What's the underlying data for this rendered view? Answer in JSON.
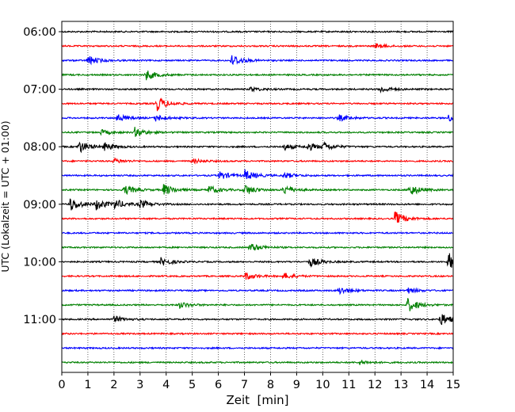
{
  "chart_data": {
    "type": "line",
    "xlabel": "Zeit  [min]",
    "ylabel": "UTC (Lokalzeit = UTC + 01:00)",
    "xlim": [
      0,
      15
    ],
    "x_ticks": [
      0,
      1,
      2,
      3,
      4,
      5,
      6,
      7,
      8,
      9,
      10,
      11,
      12,
      13,
      14,
      15
    ],
    "x_tick_labels": [
      "0",
      "1",
      "2",
      "3",
      "4",
      "5",
      "6",
      "7",
      "8",
      "9",
      "10",
      "11",
      "12",
      "13",
      "14",
      "15"
    ],
    "y_tick_labels": [
      "06:00",
      "07:00",
      "08:00",
      "09:00",
      "10:00",
      "11:00"
    ],
    "grid": {
      "x": "dotted",
      "y": false
    },
    "trace_colors": [
      "#000000",
      "#ff0000",
      "#0000ff",
      "#008000"
    ],
    "traces": [
      {
        "start": "06:00",
        "color": "#000000",
        "events": []
      },
      {
        "start": "06:15",
        "color": "#ff0000",
        "events": [
          {
            "t": 12.0,
            "amp": 3
          }
        ]
      },
      {
        "start": "06:30",
        "color": "#0000ff",
        "events": [
          {
            "t": 1.0,
            "amp": 6
          },
          {
            "t": 6.5,
            "amp": 8
          }
        ]
      },
      {
        "start": "06:45",
        "color": "#008000",
        "events": [
          {
            "t": 3.2,
            "amp": 7
          }
        ]
      },
      {
        "start": "07:00",
        "color": "#000000",
        "events": [
          {
            "t": 7.2,
            "amp": 3
          },
          {
            "t": 12.2,
            "amp": 4
          }
        ]
      },
      {
        "start": "07:15",
        "color": "#ff0000",
        "events": [
          {
            "t": 3.65,
            "amp": 9
          }
        ]
      },
      {
        "start": "07:30",
        "color": "#0000ff",
        "events": [
          {
            "t": 2.1,
            "amp": 5
          },
          {
            "t": 3.6,
            "amp": 4
          },
          {
            "t": 10.6,
            "amp": 4
          },
          {
            "t": 14.8,
            "amp": 4
          }
        ]
      },
      {
        "start": "07:45",
        "color": "#008000",
        "events": [
          {
            "t": 1.5,
            "amp": 3
          },
          {
            "t": 2.8,
            "amp": 6
          }
        ]
      },
      {
        "start": "08:00",
        "color": "#000000",
        "events": [
          {
            "t": 0.65,
            "amp": 8
          },
          {
            "t": 1.6,
            "amp": 5
          },
          {
            "t": 8.5,
            "amp": 4
          },
          {
            "t": 9.4,
            "amp": 5
          },
          {
            "t": 10.0,
            "amp": 5
          }
        ]
      },
      {
        "start": "08:15",
        "color": "#ff0000",
        "events": [
          {
            "t": 2.0,
            "amp": 3
          },
          {
            "t": 5.0,
            "amp": 3
          }
        ]
      },
      {
        "start": "08:30",
        "color": "#0000ff",
        "events": [
          {
            "t": 6.0,
            "amp": 6
          },
          {
            "t": 7.0,
            "amp": 7
          },
          {
            "t": 8.5,
            "amp": 4
          }
        ]
      },
      {
        "start": "08:45",
        "color": "#008000",
        "events": [
          {
            "t": 2.4,
            "amp": 6
          },
          {
            "t": 3.9,
            "amp": 7
          },
          {
            "t": 5.6,
            "amp": 6
          },
          {
            "t": 7.0,
            "amp": 7
          },
          {
            "t": 8.5,
            "amp": 6
          },
          {
            "t": 13.3,
            "amp": 8
          }
        ]
      },
      {
        "start": "09:00",
        "color": "#000000",
        "events": [
          {
            "t": 0.3,
            "amp": 9
          },
          {
            "t": 1.3,
            "amp": 7
          },
          {
            "t": 2.0,
            "amp": 6
          },
          {
            "t": 3.0,
            "amp": 5
          }
        ]
      },
      {
        "start": "09:15",
        "color": "#ff0000",
        "events": [
          {
            "t": 12.75,
            "amp": 9
          }
        ]
      },
      {
        "start": "09:30",
        "color": "#0000ff",
        "events": []
      },
      {
        "start": "09:45",
        "color": "#008000",
        "events": [
          {
            "t": 7.2,
            "amp": 6
          }
        ]
      },
      {
        "start": "10:00",
        "color": "#000000",
        "events": [
          {
            "t": 3.8,
            "amp": 5
          },
          {
            "t": 9.5,
            "amp": 6
          },
          {
            "t": 14.8,
            "amp": 12
          }
        ]
      },
      {
        "start": "10:15",
        "color": "#ff0000",
        "events": [
          {
            "t": 7.0,
            "amp": 5
          },
          {
            "t": 8.5,
            "amp": 4
          }
        ]
      },
      {
        "start": "10:30",
        "color": "#0000ff",
        "events": [
          {
            "t": 10.6,
            "amp": 5
          },
          {
            "t": 13.2,
            "amp": 4
          }
        ]
      },
      {
        "start": "10:45",
        "color": "#008000",
        "events": [
          {
            "t": 4.5,
            "amp": 4
          },
          {
            "t": 13.25,
            "amp": 9
          }
        ]
      },
      {
        "start": "11:00",
        "color": "#000000",
        "events": [
          {
            "t": 2.0,
            "amp": 4
          },
          {
            "t": 14.5,
            "amp": 8
          }
        ]
      },
      {
        "start": "11:15",
        "color": "#ff0000",
        "events": []
      },
      {
        "start": "11:30",
        "color": "#0000ff",
        "events": []
      },
      {
        "start": "11:45",
        "color": "#008000",
        "events": [
          {
            "t": 11.4,
            "amp": 3
          }
        ]
      }
    ]
  }
}
